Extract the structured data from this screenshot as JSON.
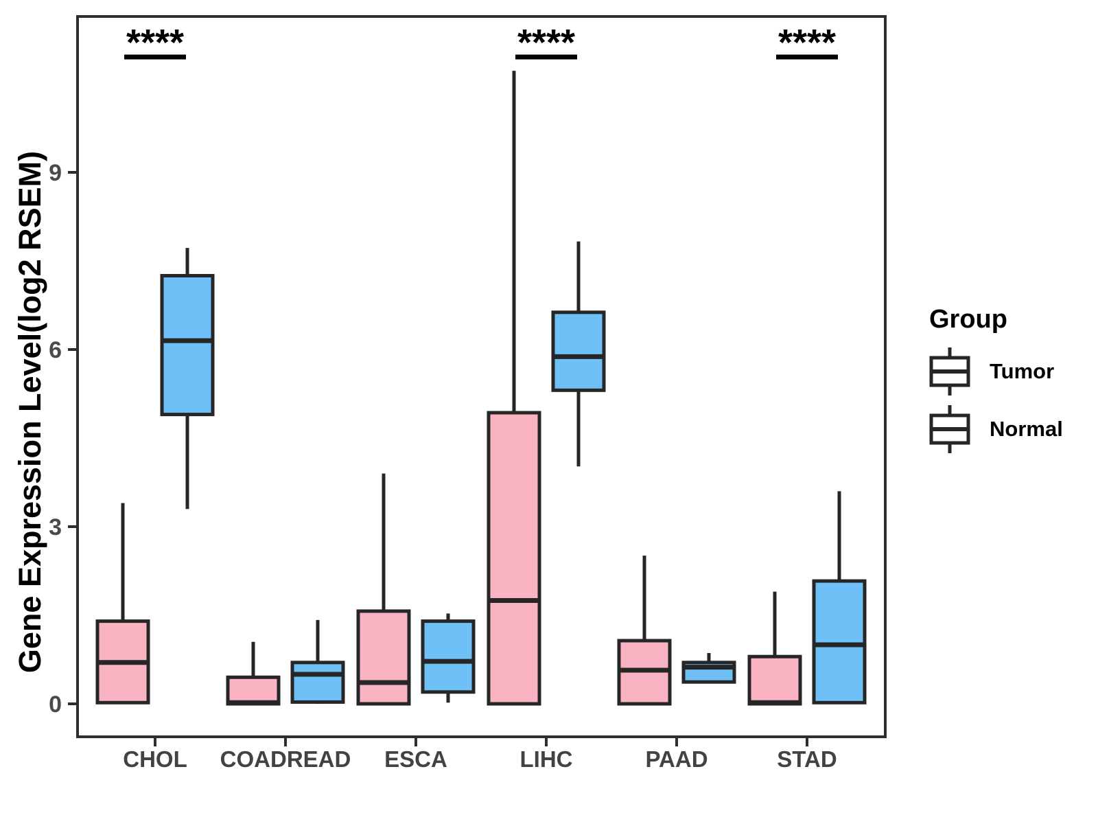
{
  "chart_data": {
    "type": "boxplot",
    "title": "",
    "xlabel": "",
    "ylabel": "Gene Expression Level(log2 RSEM)",
    "categories": [
      "CHOL",
      "COADREAD",
      "ESCA",
      "LIHC",
      "PAAD",
      "STAD"
    ],
    "groups": [
      "Tumor",
      "Normal"
    ],
    "yticks": [
      0,
      3,
      6,
      9
    ],
    "ylim": [
      -0.6,
      11.6
    ],
    "grid": "off",
    "legend": {
      "title": "Group",
      "position": "right"
    },
    "series": [
      {
        "name": "Tumor",
        "color": "#FAB3C2",
        "boxes": [
          {
            "category": "CHOL",
            "whisker_low": 0,
            "q1": 0.02,
            "median": 0.7,
            "q3": 1.4,
            "whisker_high": 3.4
          },
          {
            "category": "COADREAD",
            "whisker_low": 0,
            "q1": 0,
            "median": 0.02,
            "q3": 0.45,
            "whisker_high": 1.05
          },
          {
            "category": "ESCA",
            "whisker_low": 0,
            "q1": 0,
            "median": 0.36,
            "q3": 1.57,
            "whisker_high": 3.9
          },
          {
            "category": "LIHC",
            "whisker_low": 0,
            "q1": 0,
            "median": 1.75,
            "q3": 4.93,
            "whisker_high": 10.72
          },
          {
            "category": "PAAD",
            "whisker_low": 0,
            "q1": 0,
            "median": 0.57,
            "q3": 1.07,
            "whisker_high": 2.51
          },
          {
            "category": "STAD",
            "whisker_low": 0,
            "q1": 0,
            "median": 0.02,
            "q3": 0.8,
            "whisker_high": 1.9
          }
        ]
      },
      {
        "name": "Normal",
        "color": "#6FC0F7",
        "boxes": [
          {
            "category": "CHOL",
            "whisker_low": 3.3,
            "q1": 4.9,
            "median": 6.15,
            "q3": 7.25,
            "whisker_high": 7.72
          },
          {
            "category": "COADREAD",
            "whisker_low": 0,
            "q1": 0.03,
            "median": 0.5,
            "q3": 0.7,
            "whisker_high": 1.42
          },
          {
            "category": "ESCA",
            "whisker_low": 0.02,
            "q1": 0.2,
            "median": 0.72,
            "q3": 1.4,
            "whisker_high": 1.53
          },
          {
            "category": "LIHC",
            "whisker_low": 4.02,
            "q1": 5.31,
            "median": 5.88,
            "q3": 6.63,
            "whisker_high": 7.83
          },
          {
            "category": "PAAD",
            "whisker_low": 0.37,
            "q1": 0.37,
            "median": 0.62,
            "q3": 0.7,
            "whisker_high": 0.86
          },
          {
            "category": "STAD",
            "whisker_low": 0,
            "q1": 0.02,
            "median": 1.0,
            "q3": 2.08,
            "whisker_high": 3.6
          }
        ]
      }
    ],
    "significance": [
      {
        "category": "CHOL",
        "label": "****"
      },
      {
        "category": "LIHC",
        "label": "****"
      },
      {
        "category": "STAD",
        "label": "****"
      }
    ],
    "colors": {
      "box_stroke": "#262626",
      "axis_stroke": "#2e2e2e",
      "tick_text": "#4a4a4a",
      "sig_text": "#000000"
    }
  }
}
